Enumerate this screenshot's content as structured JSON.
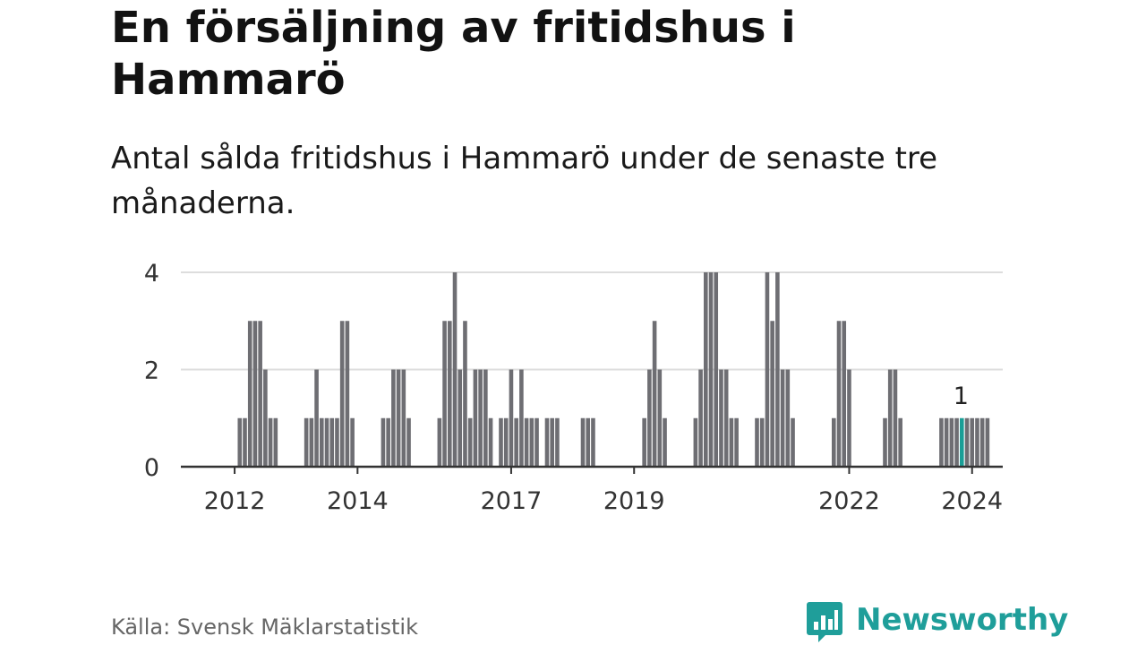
{
  "title": "En försäljning av fritidshus i Hammarö",
  "subtitle": "Antal sålda fritidshus i Hammarö under de senaste tre månaderna.",
  "source": "Källa: Svensk Mäklarstatistik",
  "logo": {
    "text": "Newsworthy",
    "icon": "newsworthy-bar-chart-icon",
    "color": "#1f9e9a"
  },
  "colors": {
    "bar": "#6e6e73",
    "highlight": "#1a9e96",
    "grid": "#dddddd",
    "axis": "#333333"
  },
  "chart_data": {
    "type": "bar",
    "title": "En försäljning av fritidshus i Hammarö",
    "xlabel": "",
    "ylabel": "",
    "grid": true,
    "ylim": [
      0,
      4
    ],
    "yticks": [
      0,
      2,
      4
    ],
    "x_start": {
      "year": 2011,
      "month": 9
    },
    "xticks": [
      {
        "label": "2012",
        "year": 2012,
        "month": 7
      },
      {
        "label": "2014",
        "year": 2014,
        "month": 7
      },
      {
        "label": "2017",
        "year": 2017,
        "month": 1
      },
      {
        "label": "2019",
        "year": 2019,
        "month": 1
      },
      {
        "label": "2022",
        "year": 2022,
        "month": 7
      },
      {
        "label": "2024",
        "year": 2024,
        "month": 7
      }
    ],
    "values": [
      0,
      0,
      0,
      0,
      0,
      0,
      0,
      0,
      0,
      0,
      0,
      1,
      1,
      3,
      3,
      3,
      2,
      1,
      1,
      0,
      0,
      0,
      0,
      0,
      1,
      1,
      2,
      1,
      1,
      1,
      1,
      3,
      3,
      1,
      0,
      0,
      0,
      0,
      0,
      1,
      1,
      2,
      2,
      2,
      1,
      0,
      0,
      0,
      0,
      0,
      1,
      3,
      3,
      4,
      2,
      3,
      1,
      2,
      2,
      2,
      1,
      0,
      1,
      1,
      2,
      1,
      2,
      1,
      1,
      1,
      0,
      1,
      1,
      1,
      0,
      0,
      0,
      0,
      1,
      1,
      1,
      0,
      0,
      0,
      0,
      0,
      0,
      0,
      0,
      0,
      1,
      2,
      3,
      2,
      1,
      0,
      0,
      0,
      0,
      0,
      1,
      2,
      4,
      4,
      4,
      2,
      2,
      1,
      1,
      0,
      0,
      0,
      1,
      1,
      4,
      3,
      4,
      2,
      2,
      1,
      0,
      0,
      0,
      0,
      0,
      0,
      0,
      1,
      3,
      3,
      2,
      0,
      0,
      0,
      0,
      0,
      0,
      1,
      2,
      2,
      1,
      0,
      0,
      0,
      0,
      0,
      0,
      0,
      1,
      1,
      1,
      1,
      1,
      1,
      1,
      1,
      1,
      1
    ],
    "highlight_index": 152,
    "highlight_label": "1"
  }
}
